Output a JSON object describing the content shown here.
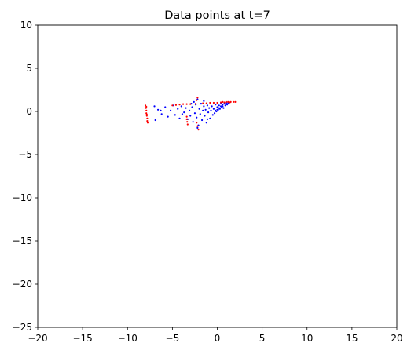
{
  "chart_data": {
    "type": "scatter",
    "title": "Data points at t=7",
    "xlabel": "",
    "ylabel": "",
    "xlim": [
      -20,
      20
    ],
    "ylim": [
      -25,
      10
    ],
    "xticks": [
      -20,
      -15,
      -10,
      -5,
      0,
      5,
      10,
      15,
      20
    ],
    "yticks": [
      10,
      5,
      0,
      -5,
      -10,
      -15,
      -20,
      -25
    ],
    "xtick_labels": [
      "−20",
      "−15",
      "−10",
      "−5",
      "0",
      "5",
      "10",
      "15",
      "20"
    ],
    "ytick_labels": [
      "10",
      "5",
      "0",
      "−5",
      "−10",
      "−15",
      "−20",
      "−25"
    ],
    "grid": false,
    "series": [
      {
        "name": "blue",
        "color": "#0000ff",
        "points": [
          [
            -7.0,
            0.6
          ],
          [
            -6.6,
            0.2
          ],
          [
            -6.2,
            -0.3
          ],
          [
            -5.8,
            0.5
          ],
          [
            -5.5,
            -0.6
          ],
          [
            -5.2,
            0.1
          ],
          [
            -4.9,
            0.7
          ],
          [
            -4.7,
            -0.4
          ],
          [
            -4.4,
            0.3
          ],
          [
            -4.2,
            -0.8
          ],
          [
            -4.0,
            0.6
          ],
          [
            -3.7,
            -0.1
          ],
          [
            -3.5,
            0.4
          ],
          [
            -3.3,
            -0.9
          ],
          [
            -3.1,
            0.1
          ],
          [
            -3.0,
            -0.5
          ],
          [
            -2.8,
            0.5
          ],
          [
            -2.7,
            -1.2
          ],
          [
            -2.5,
            -0.2
          ],
          [
            -2.4,
            0.8
          ],
          [
            -2.3,
            -0.7
          ],
          [
            -2.2,
            1.4
          ],
          [
            -2.1,
            -1.6
          ],
          [
            -2.0,
            0.3
          ],
          [
            -1.9,
            -0.3
          ],
          [
            -1.8,
            0.9
          ],
          [
            -1.7,
            -1.0
          ],
          [
            -1.6,
            0.1
          ],
          [
            -1.5,
            0.6
          ],
          [
            -1.4,
            -0.5
          ],
          [
            -1.3,
            0.2
          ],
          [
            -1.2,
            -1.3
          ],
          [
            -1.1,
            0.7
          ],
          [
            -1.0,
            -0.1
          ],
          [
            -0.9,
            0.4
          ],
          [
            -0.8,
            -0.8
          ],
          [
            -0.7,
            0.1
          ],
          [
            -0.6,
            0.6
          ],
          [
            -0.5,
            -0.4
          ],
          [
            -0.4,
            0.3
          ],
          [
            -0.3,
            -0.2
          ],
          [
            -0.2,
            0.8
          ],
          [
            -0.1,
            0.0
          ],
          [
            0.0,
            0.5
          ],
          [
            0.1,
            0.2
          ],
          [
            0.2,
            0.7
          ],
          [
            0.3,
            0.3
          ],
          [
            0.4,
            0.9
          ],
          [
            0.5,
            0.5
          ],
          [
            0.6,
            0.8
          ],
          [
            0.7,
            0.4
          ],
          [
            0.8,
            1.0
          ],
          [
            0.9,
            0.7
          ],
          [
            1.0,
            0.9
          ],
          [
            1.1,
            0.8
          ],
          [
            1.2,
            1.0
          ],
          [
            1.3,
            0.9
          ],
          [
            0.4,
            0.6
          ],
          [
            0.6,
            0.6
          ],
          [
            0.2,
            0.4
          ],
          [
            0.0,
            0.2
          ],
          [
            -0.2,
            0.1
          ],
          [
            0.8,
            0.9
          ],
          [
            1.0,
            1.0
          ],
          [
            -3.9,
            -0.3
          ],
          [
            -6.9,
            -1.0
          ],
          [
            -6.3,
            0.1
          ],
          [
            -2.6,
            1.1
          ],
          [
            -1.5,
            1.2
          ],
          [
            -2.9,
            0.9
          ],
          [
            -2.2,
            -1.9
          ],
          [
            -1.1,
            -0.9
          ]
        ]
      },
      {
        "name": "red",
        "color": "#ff0000",
        "points": [
          [
            -8.0,
            0.7
          ],
          [
            -7.95,
            0.4
          ],
          [
            -7.9,
            0.1
          ],
          [
            -7.9,
            -0.2
          ],
          [
            -7.85,
            -0.5
          ],
          [
            -7.8,
            -0.8
          ],
          [
            -7.8,
            -1.1
          ],
          [
            -7.75,
            -1.3
          ],
          [
            -7.9,
            0.55
          ],
          [
            -7.85,
            -0.35
          ],
          [
            -5.0,
            0.7
          ],
          [
            -4.6,
            0.75
          ],
          [
            -4.2,
            0.8
          ],
          [
            -3.8,
            0.85
          ],
          [
            -3.4,
            0.85
          ],
          [
            -3.0,
            0.85
          ],
          [
            -3.4,
            -0.6
          ],
          [
            -3.4,
            -0.9
          ],
          [
            -3.35,
            -1.2
          ],
          [
            -3.3,
            -1.5
          ],
          [
            -2.4,
            0.9
          ],
          [
            -2.3,
            1.3
          ],
          [
            -2.2,
            1.6
          ],
          [
            -2.3,
            -1.3
          ],
          [
            -2.2,
            -1.7
          ],
          [
            -2.1,
            -2.1
          ],
          [
            -1.6,
            0.95
          ],
          [
            -1.2,
            0.95
          ],
          [
            -0.8,
            1.0
          ],
          [
            -0.4,
            1.0
          ],
          [
            0.0,
            1.0
          ],
          [
            0.4,
            1.05
          ],
          [
            0.8,
            1.05
          ],
          [
            1.2,
            1.1
          ],
          [
            1.5,
            1.1
          ],
          [
            1.8,
            1.1
          ],
          [
            2.0,
            1.1
          ],
          [
            0.6,
            1.1
          ],
          [
            1.0,
            1.1
          ],
          [
            1.4,
            1.05
          ]
        ]
      }
    ]
  }
}
